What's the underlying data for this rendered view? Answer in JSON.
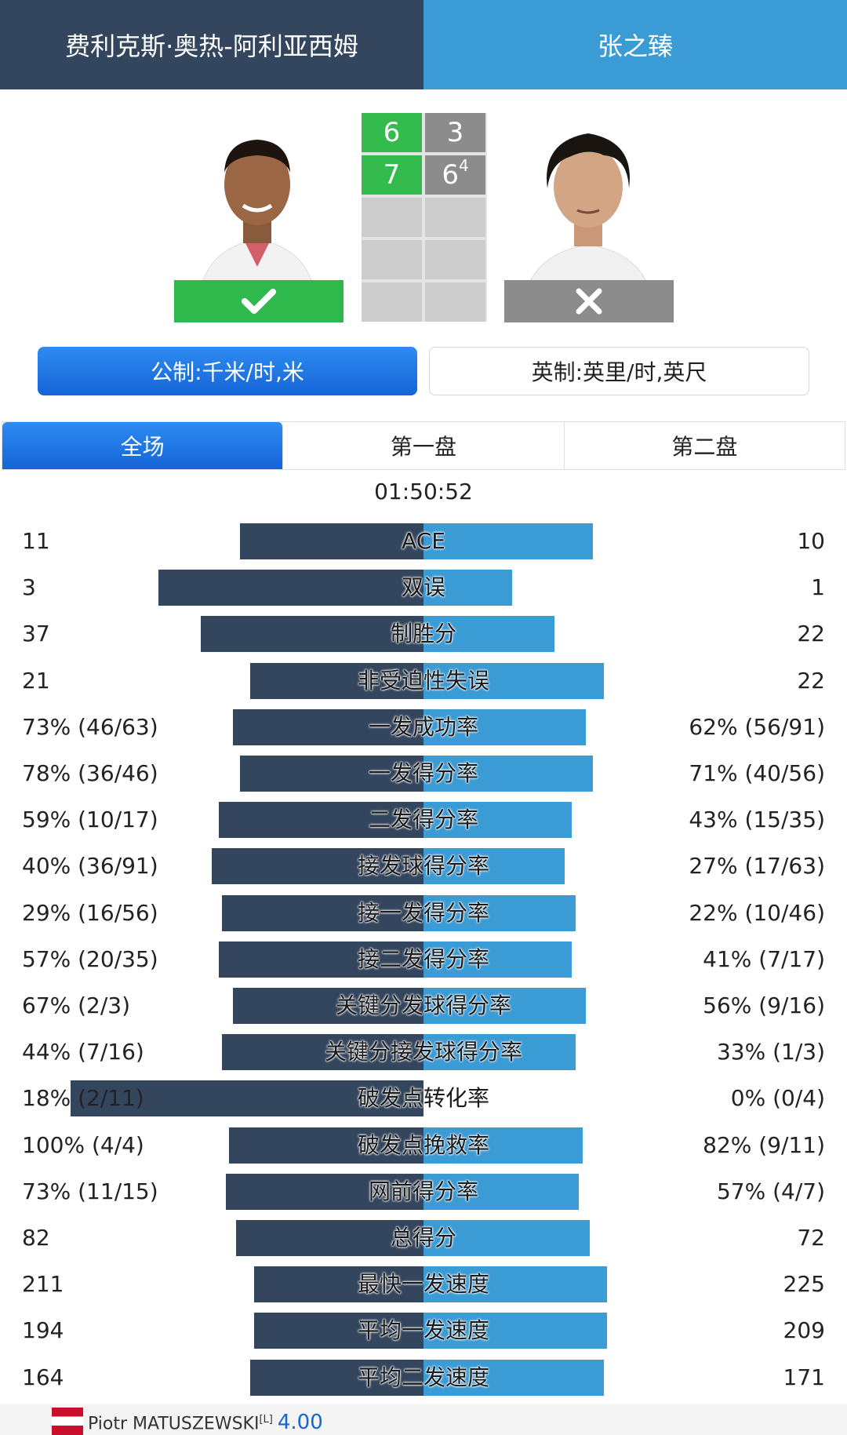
{
  "header": {
    "player_left": "费利克斯·奥热-阿利亚西姆",
    "player_right": "张之臻"
  },
  "players": {
    "left": {
      "photo_icon": "player-photo",
      "result_icon": "checkmark-icon"
    },
    "right": {
      "photo_icon": "player-photo",
      "result_icon": "cross-icon"
    }
  },
  "scoreboard": {
    "sets": [
      {
        "left": "6",
        "right": "3",
        "right_tiebreak": ""
      },
      {
        "left": "7",
        "right": "6",
        "right_tiebreak": "4"
      }
    ],
    "colors": {
      "won": "#33bb4d",
      "lost": "#8c8c8c",
      "empty": "#cccccc"
    }
  },
  "units": {
    "metric": "公制:千米/时,米",
    "imperial": "英制:英里/时,英尺",
    "selected": "metric"
  },
  "tabs": [
    "全场",
    "第一盘",
    "第二盘"
  ],
  "match_time": "01:50:52",
  "stats": [
    {
      "label": "ACE",
      "left": "11",
      "right": "10",
      "left_share": 0.52,
      "right_share": 0.48
    },
    {
      "label": "双误",
      "left": "3",
      "right": "1",
      "left_share": 0.75,
      "right_share": 0.25
    },
    {
      "label": "制胜分",
      "left": "37",
      "right": "22",
      "left_share": 0.63,
      "right_share": 0.37
    },
    {
      "label": "非受迫性失误",
      "left": "21",
      "right": "22",
      "left_share": 0.49,
      "right_share": 0.51
    },
    {
      "label": "一发成功率",
      "left": "73% (46/63)",
      "right": "62% (56/91)",
      "left_share": 0.54,
      "right_share": 0.46
    },
    {
      "label": "一发得分率",
      "left": "78% (36/46)",
      "right": "71% (40/56)",
      "left_share": 0.52,
      "right_share": 0.48
    },
    {
      "label": "二发得分率",
      "left": "59% (10/17)",
      "right": "43% (15/35)",
      "left_share": 0.58,
      "right_share": 0.42
    },
    {
      "label": "接发球得分率",
      "left": "40% (36/91)",
      "right": "27% (17/63)",
      "left_share": 0.6,
      "right_share": 0.4
    },
    {
      "label": "接一发得分率",
      "left": "29% (16/56)",
      "right": "22% (10/46)",
      "left_share": 0.57,
      "right_share": 0.43
    },
    {
      "label": "接二发得分率",
      "left": "57% (20/35)",
      "right": "41% (7/17)",
      "left_share": 0.58,
      "right_share": 0.42
    },
    {
      "label": "关键分发球得分率",
      "left": "67% (2/3)",
      "right": "56% (9/16)",
      "left_share": 0.54,
      "right_share": 0.46
    },
    {
      "label": "关键分接发球得分率",
      "left": "44% (7/16)",
      "right": "33% (1/3)",
      "left_share": 0.57,
      "right_share": 0.43
    },
    {
      "label": "破发点转化率",
      "left": "18% (2/11)",
      "right": "0% (0/4)",
      "left_share": 1.0,
      "right_share": 0.0
    },
    {
      "label": "破发点挽救率",
      "left": "100% (4/4)",
      "right": "82% (9/11)",
      "left_share": 0.55,
      "right_share": 0.45
    },
    {
      "label": "网前得分率",
      "left": "73% (11/15)",
      "right": "57% (4/7)",
      "left_share": 0.56,
      "right_share": 0.44
    },
    {
      "label": "总得分",
      "left": "82",
      "right": "72",
      "left_share": 0.53,
      "right_share": 0.47
    },
    {
      "label": "最快一发速度",
      "left": "211",
      "right": "225",
      "left_share": 0.48,
      "right_share": 0.52
    },
    {
      "label": "平均一发速度",
      "left": "194",
      "right": "209",
      "left_share": 0.48,
      "right_share": 0.52
    },
    {
      "label": "平均二发速度",
      "left": "164",
      "right": "171",
      "left_share": 0.49,
      "right_share": 0.51
    }
  ],
  "footer": {
    "name_line": "Piotr MATUSZEWSKI",
    "name_tag": "[L]",
    "odds": "4.00",
    "flag_icon": "poland-flag-icon"
  }
}
